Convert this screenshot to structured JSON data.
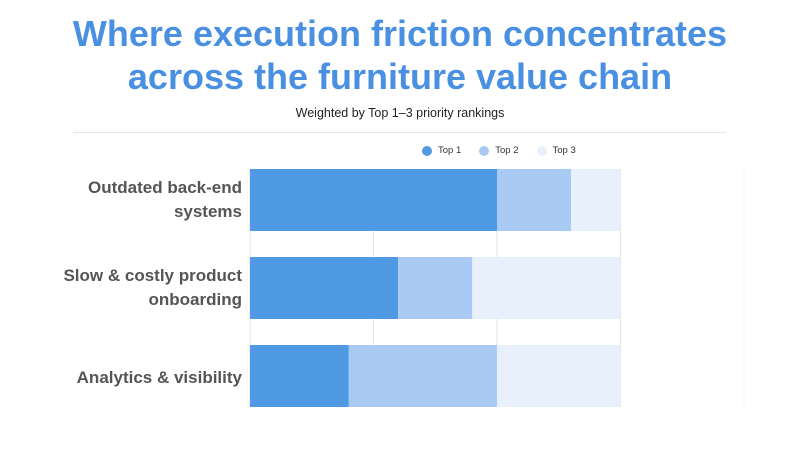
{
  "title_line1": "Where execution friction concentrates",
  "title_line2": "across the furniture value chain",
  "subtitle": "Weighted by Top 1–3 priority rankings",
  "chart_data": {
    "type": "bar",
    "orientation": "horizontal",
    "stacked": true,
    "categories": [
      "Outdated back-end systems",
      "Slow & costly product onboarding",
      "Analytics & visibility"
    ],
    "category_lines": [
      [
        "Outdated back-end",
        "systems"
      ],
      [
        "Slow & costly product",
        "onboarding"
      ],
      [
        "Analytics & visibility"
      ]
    ],
    "series": [
      {
        "name": "Top 1",
        "values": [
          10,
          6,
          4
        ],
        "color": "#4f9ae3"
      },
      {
        "name": "Top 2",
        "values": [
          3,
          3,
          6
        ],
        "color": "#a9cbf3"
      },
      {
        "name": "Top 3",
        "values": [
          2,
          6,
          5
        ],
        "color": "#e8f0fc"
      }
    ],
    "xlim": [
      0,
      20
    ],
    "grid": true,
    "legend_position": "top-center",
    "xlabel": "",
    "ylabel": ""
  }
}
